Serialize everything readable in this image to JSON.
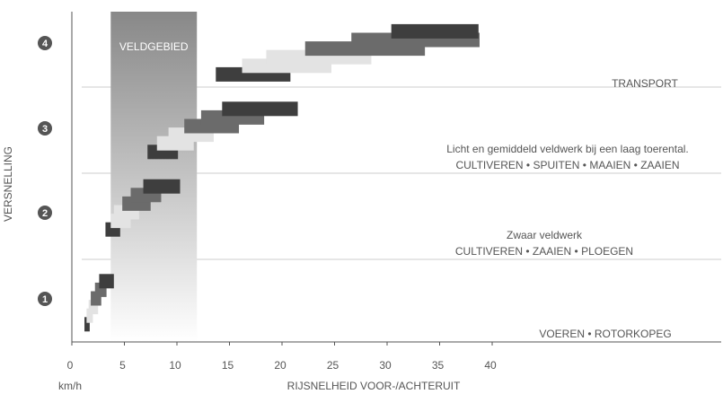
{
  "chart_data": {
    "type": "gantt-bar",
    "title": "",
    "xlabel": "RIJSNELHEID VOOR-/ACHTERUIT",
    "x_unit": "km/h",
    "ylabel": "VERSNELLING",
    "xlim": [
      0,
      42
    ],
    "x_ticks": [
      0,
      5,
      10,
      15,
      20,
      25,
      30,
      35,
      40
    ],
    "gear_labels": [
      "1",
      "2",
      "3",
      "4"
    ],
    "grid": false,
    "field_zone": {
      "label": "VELDGEBIED",
      "x": [
        3.7,
        11.9
      ]
    },
    "zone_lines": [
      1.5,
      2.5,
      3.5
    ],
    "zone_labels": [
      {
        "lines": [
          "VOEREN • ROTORKOPEG"
        ],
        "gear": 0.7
      },
      {
        "lines": [
          "Zwaar veldwerk",
          "CULTIVEREN • ZAAIEN • PLOEGEN"
        ],
        "gear": 1.8
      },
      {
        "lines": [
          "Licht en gemiddeld veldwerk bij een laag toerental.",
          "CULTIVEREN • SPUITEN • MAAIEN • ZAAIEN"
        ],
        "gear": 2.8
      },
      {
        "lines": [
          "TRANSPORT"
        ],
        "gear": 3.55
      }
    ],
    "bars": [
      {
        "gear": 0.7,
        "x": [
          1.2,
          1.7
        ],
        "shade": "dark"
      },
      {
        "gear": 0.8,
        "x": [
          1.4,
          2.0
        ],
        "shade": "light"
      },
      {
        "gear": 0.9,
        "x": [
          1.6,
          2.5
        ],
        "shade": "light"
      },
      {
        "gear": 1.0,
        "x": [
          1.8,
          2.8
        ],
        "shade": "mid"
      },
      {
        "gear": 1.1,
        "x": [
          2.2,
          3.3
        ],
        "shade": "mid"
      },
      {
        "gear": 1.2,
        "x": [
          2.6,
          4.0
        ],
        "shade": "dark"
      },
      {
        "gear": 1.8,
        "x": [
          3.2,
          4.6
        ],
        "shade": "dark"
      },
      {
        "gear": 1.9,
        "x": [
          3.7,
          5.6
        ],
        "shade": "light"
      },
      {
        "gear": 2.0,
        "x": [
          4.0,
          6.4
        ],
        "shade": "light"
      },
      {
        "gear": 2.1,
        "x": [
          4.8,
          7.5
        ],
        "shade": "mid"
      },
      {
        "gear": 2.2,
        "x": [
          5.6,
          8.5
        ],
        "shade": "mid"
      },
      {
        "gear": 2.3,
        "x": [
          6.8,
          10.3
        ],
        "shade": "dark"
      },
      {
        "gear": 2.7,
        "x": [
          7.2,
          10.1
        ],
        "shade": "dark"
      },
      {
        "gear": 2.8,
        "x": [
          8.1,
          11.6
        ],
        "shade": "light"
      },
      {
        "gear": 2.9,
        "x": [
          9.2,
          13.5
        ],
        "shade": "light"
      },
      {
        "gear": 3.0,
        "x": [
          10.7,
          15.9
        ],
        "shade": "mid"
      },
      {
        "gear": 3.1,
        "x": [
          12.3,
          18.3
        ],
        "shade": "mid"
      },
      {
        "gear": 3.2,
        "x": [
          14.3,
          21.5
        ],
        "shade": "dark"
      },
      {
        "gear": 3.6,
        "x": [
          13.7,
          20.8
        ],
        "shade": "dark"
      },
      {
        "gear": 3.7,
        "x": [
          16.2,
          24.7
        ],
        "shade": "light"
      },
      {
        "gear": 3.8,
        "x": [
          18.5,
          28.5
        ],
        "shade": "light"
      },
      {
        "gear": 3.9,
        "x": [
          22.2,
          33.6
        ],
        "shade": "mid"
      },
      {
        "gear": 4.0,
        "x": [
          26.6,
          38.8
        ],
        "shade": "mid"
      },
      {
        "gear": 4.1,
        "x": [
          30.4,
          38.7
        ],
        "shade": "dark"
      }
    ],
    "colors": {
      "dark": "#3e3e3e",
      "mid": "#6b6b6b",
      "light": "#e3e3e3",
      "zone_top": "#888888",
      "zone_bottom": "#ffffff",
      "badge": "#555555"
    }
  }
}
